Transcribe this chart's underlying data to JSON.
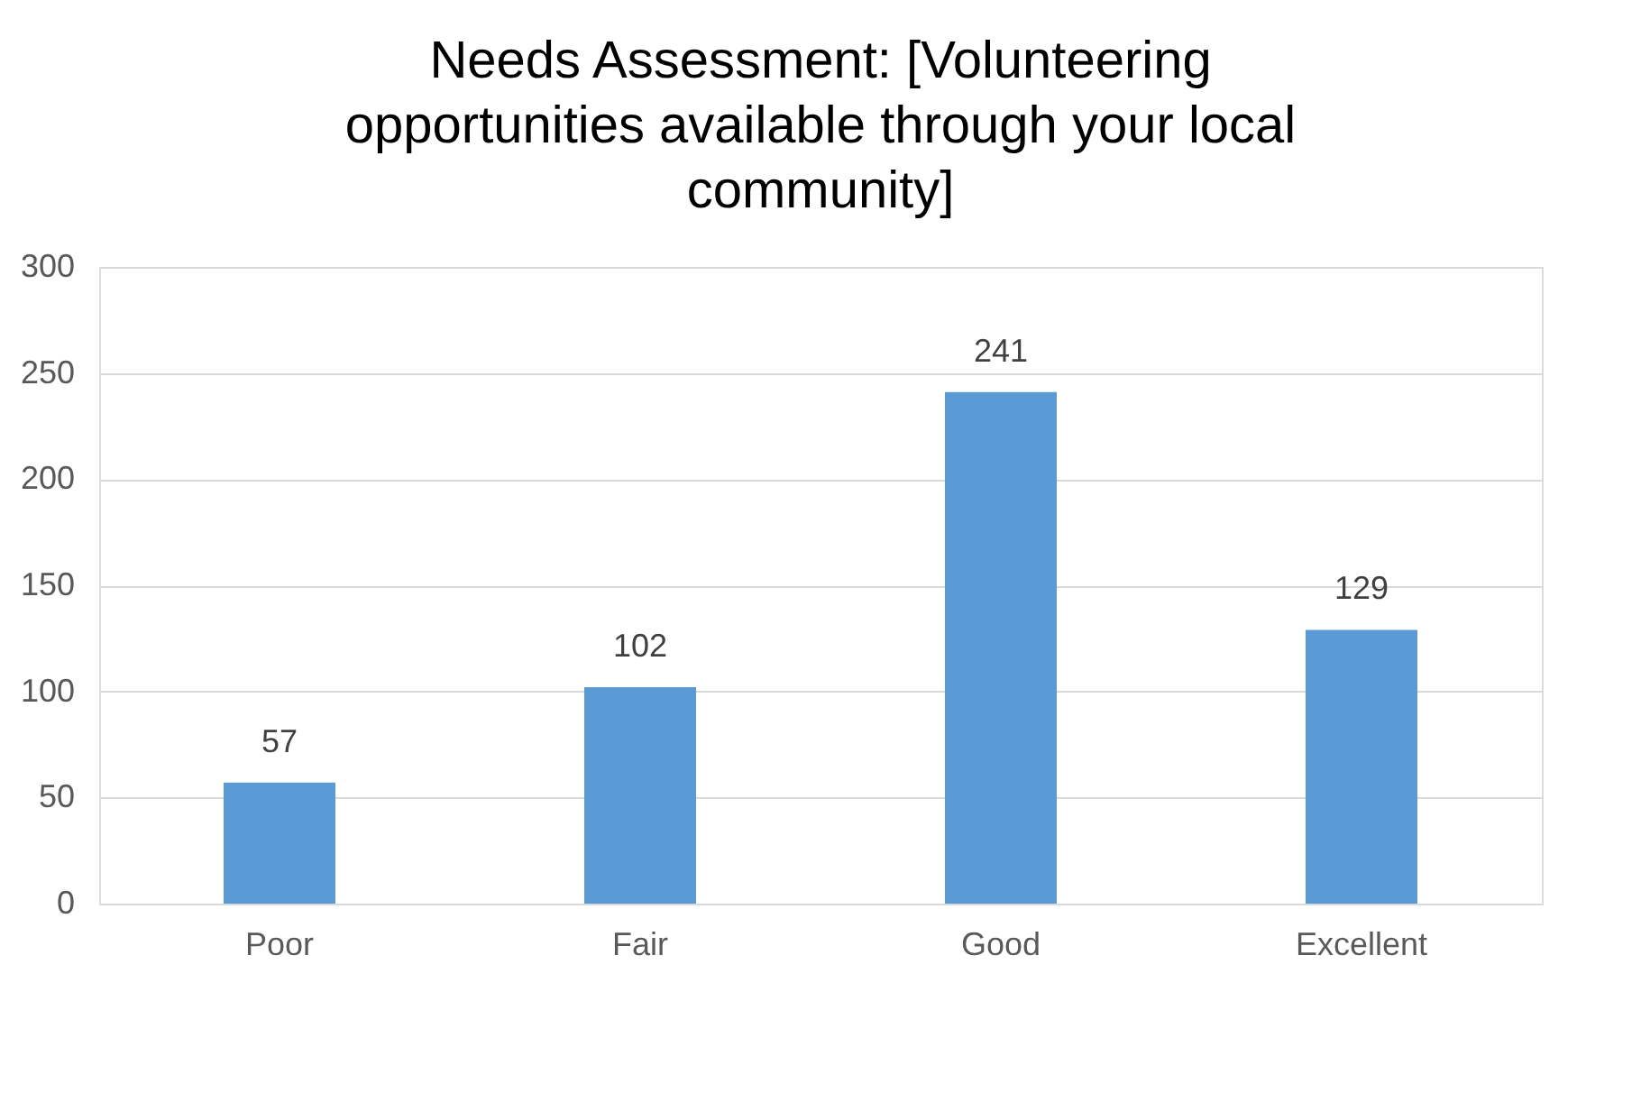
{
  "chart_data": {
    "type": "bar",
    "title": "Needs Assessment: [Volunteering opportunities available through your local community]",
    "categories": [
      "Poor",
      "Fair",
      "Good",
      "Excellent"
    ],
    "values": [
      57,
      102,
      241,
      129
    ],
    "color": "#5b9bd5",
    "ylim": [
      0,
      300
    ],
    "yticks": [
      0,
      50,
      100,
      150,
      200,
      250,
      300
    ],
    "grid": "y",
    "data_labels": true
  }
}
